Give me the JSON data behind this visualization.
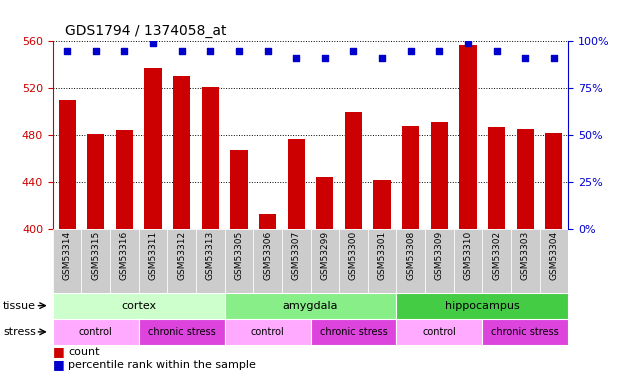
{
  "title": "GDS1794 / 1374058_at",
  "samples": [
    "GSM53314",
    "GSM53315",
    "GSM53316",
    "GSM53311",
    "GSM53312",
    "GSM53313",
    "GSM53305",
    "GSM53306",
    "GSM53307",
    "GSM53299",
    "GSM53300",
    "GSM53301",
    "GSM53308",
    "GSM53309",
    "GSM53310",
    "GSM53302",
    "GSM53303",
    "GSM53304"
  ],
  "counts": [
    510,
    481,
    484,
    537,
    530,
    521,
    467,
    413,
    477,
    444,
    500,
    442,
    488,
    491,
    557,
    487,
    485,
    482
  ],
  "percentiles": [
    95,
    95,
    95,
    99,
    95,
    95,
    95,
    95,
    91,
    91,
    95,
    91,
    95,
    95,
    99,
    95,
    91,
    91
  ],
  "bar_color": "#cc0000",
  "dot_color": "#0000cc",
  "ylim_left": [
    400,
    560
  ],
  "yticks_left": [
    400,
    440,
    480,
    520,
    560
  ],
  "ylim_right": [
    0,
    100
  ],
  "yticks_right": [
    0,
    25,
    50,
    75,
    100
  ],
  "tissue_groups": [
    {
      "label": "cortex",
      "start": 0,
      "end": 6,
      "color": "#ccffcc"
    },
    {
      "label": "amygdala",
      "start": 6,
      "end": 12,
      "color": "#88ee88"
    },
    {
      "label": "hippocampus",
      "start": 12,
      "end": 18,
      "color": "#44cc44"
    }
  ],
  "stress_groups": [
    {
      "label": "control",
      "start": 0,
      "end": 3,
      "color": "#ffaaff"
    },
    {
      "label": "chronic stress",
      "start": 3,
      "end": 6,
      "color": "#dd44dd"
    },
    {
      "label": "control",
      "start": 6,
      "end": 9,
      "color": "#ffaaff"
    },
    {
      "label": "chronic stress",
      "start": 9,
      "end": 12,
      "color": "#dd44dd"
    },
    {
      "label": "control",
      "start": 12,
      "end": 15,
      "color": "#ffaaff"
    },
    {
      "label": "chronic stress",
      "start": 15,
      "end": 18,
      "color": "#dd44dd"
    }
  ],
  "bar_color_hex": "#cc0000",
  "dot_color_hex": "#0000cc",
  "left_axis_color": "#cc0000",
  "right_axis_color": "#0000cc",
  "background_color": "#ffffff",
  "tick_label_bg": "#cccccc",
  "title_fontsize": 10,
  "tick_fontsize": 8,
  "label_fontsize": 8,
  "row_label_fontsize": 8
}
